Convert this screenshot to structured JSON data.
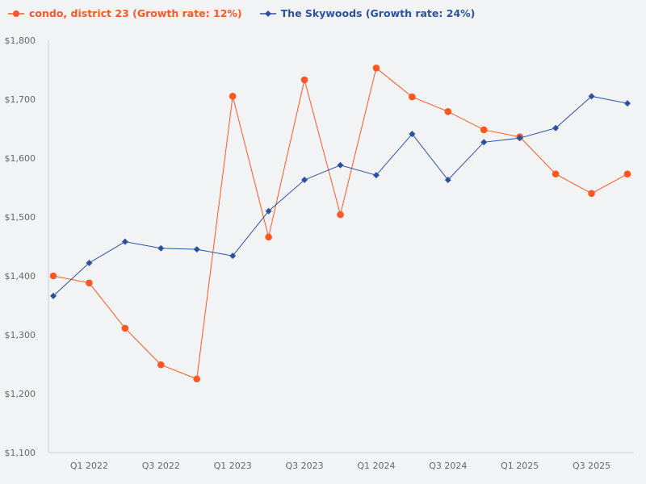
{
  "chart_data": {
    "type": "line",
    "categories": [
      "Q4 2021",
      "Q1 2022",
      "Q2 2022",
      "Q3 2022",
      "Q4 2022",
      "Q1 2023",
      "Q2 2023",
      "Q3 2023",
      "Q4 2023",
      "Q1 2024",
      "Q2 2024",
      "Q3 2024",
      "Q4 2024",
      "Q1 2025",
      "Q2 2025",
      "Q3 2025",
      "Q4 2025"
    ],
    "x_tick_labels": [
      "Q1 2022",
      "Q3 2022",
      "Q1 2023",
      "Q3 2023",
      "Q1 2024",
      "Q3 2024",
      "Q1 2025",
      "Q3 2025"
    ],
    "y_ticks": [
      "$1,100",
      "$1,200",
      "$1,300",
      "$1,400",
      "$1,500",
      "$1,600",
      "$1,700",
      "$1,800"
    ],
    "ylim": [
      1100,
      1800
    ],
    "grid": false,
    "legend_position": "top-left",
    "series": [
      {
        "name": "condo, district 23 (Growth rate: 12%)",
        "color": "#ff5722",
        "marker": "circle",
        "values": [
          1400,
          1388,
          1311,
          1249,
          1225,
          1705,
          1466,
          1733,
          1504,
          1753,
          1704,
          1679,
          1648,
          1636,
          1573,
          1540,
          1573
        ]
      },
      {
        "name": "The Skywoods (Growth rate: 24%)",
        "color": "#2a52a0",
        "marker": "diamond",
        "values": [
          1366,
          1422,
          1458,
          1447,
          1445,
          1434,
          1510,
          1563,
          1588,
          1571,
          1641,
          1563,
          1627,
          1634,
          1651,
          1705,
          1693
        ]
      }
    ]
  }
}
